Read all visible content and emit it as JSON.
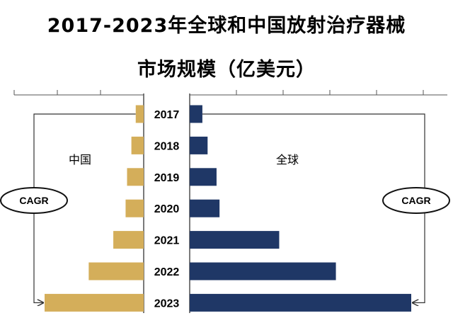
{
  "title_line1": "2017-2023年全球和中国放射治疗器械",
  "title_line2": "市场规模（亿美元）",
  "chart_data": {
    "type": "bar",
    "orientation": "horizontal-butterfly",
    "categories": [
      "2017",
      "2018",
      "2019",
      "2020",
      "2021",
      "2022",
      "2023"
    ],
    "series": [
      {
        "name": "中国",
        "side": "left",
        "color": "#D4AE5A",
        "values": [
          11,
          17,
          23,
          25,
          42,
          76,
          137
        ]
      },
      {
        "name": "全球",
        "side": "right",
        "color": "#1F3766",
        "values": [
          17,
          24,
          36,
          40,
          120,
          196,
          297
        ]
      }
    ],
    "annotations": {
      "left_badge": "CAGR",
      "right_badge": "CAGR"
    },
    "grid": false,
    "legend": "none"
  }
}
